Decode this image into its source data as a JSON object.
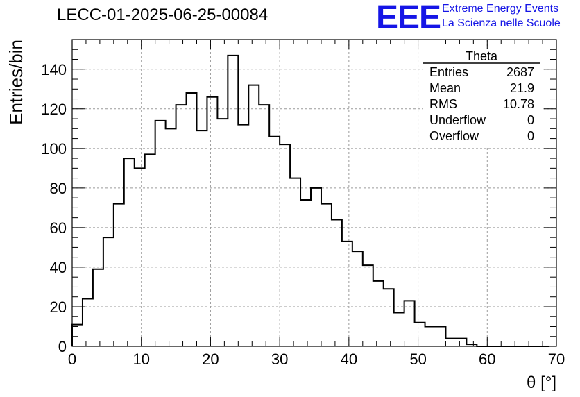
{
  "header": {
    "title": "LECC-01-2025-06-25-00084",
    "logo_text": "EEE",
    "logo_line1": "Extreme Energy Events",
    "logo_line2": "La Scienza nelle Scuole"
  },
  "stats_box": {
    "name": "Theta",
    "rows": [
      {
        "label": "Entries",
        "value": "2687"
      },
      {
        "label": "Mean",
        "value": "21.9"
      },
      {
        "label": "RMS",
        "value": "10.78"
      },
      {
        "label": "Underflow",
        "value": "0"
      },
      {
        "label": "Overflow",
        "value": "0"
      }
    ]
  },
  "colors": {
    "accent": "#1515e6",
    "line": "#000000",
    "grid": "#9a9a9a"
  },
  "chart_data": {
    "type": "bar",
    "histogram": true,
    "xlabel": "θ [°]",
    "ylabel": "Entries/bin",
    "xlim": [
      0,
      70
    ],
    "ylim": [
      0,
      155
    ],
    "grid": true,
    "bin_width": 1.5,
    "x_ticks": [
      0,
      10,
      20,
      30,
      40,
      50,
      60,
      70
    ],
    "y_ticks": [
      0,
      20,
      40,
      60,
      80,
      100,
      120,
      140
    ],
    "values": [
      11,
      24,
      39,
      55,
      72,
      95,
      90,
      97,
      114,
      110,
      122,
      128,
      109,
      126,
      115,
      147,
      112,
      132,
      122,
      106,
      102,
      85,
      74,
      80,
      72,
      64,
      53,
      48,
      41,
      33,
      29,
      17,
      23,
      12,
      10,
      10,
      4,
      4,
      1,
      0,
      0,
      0,
      0,
      0,
      0,
      0
    ]
  }
}
